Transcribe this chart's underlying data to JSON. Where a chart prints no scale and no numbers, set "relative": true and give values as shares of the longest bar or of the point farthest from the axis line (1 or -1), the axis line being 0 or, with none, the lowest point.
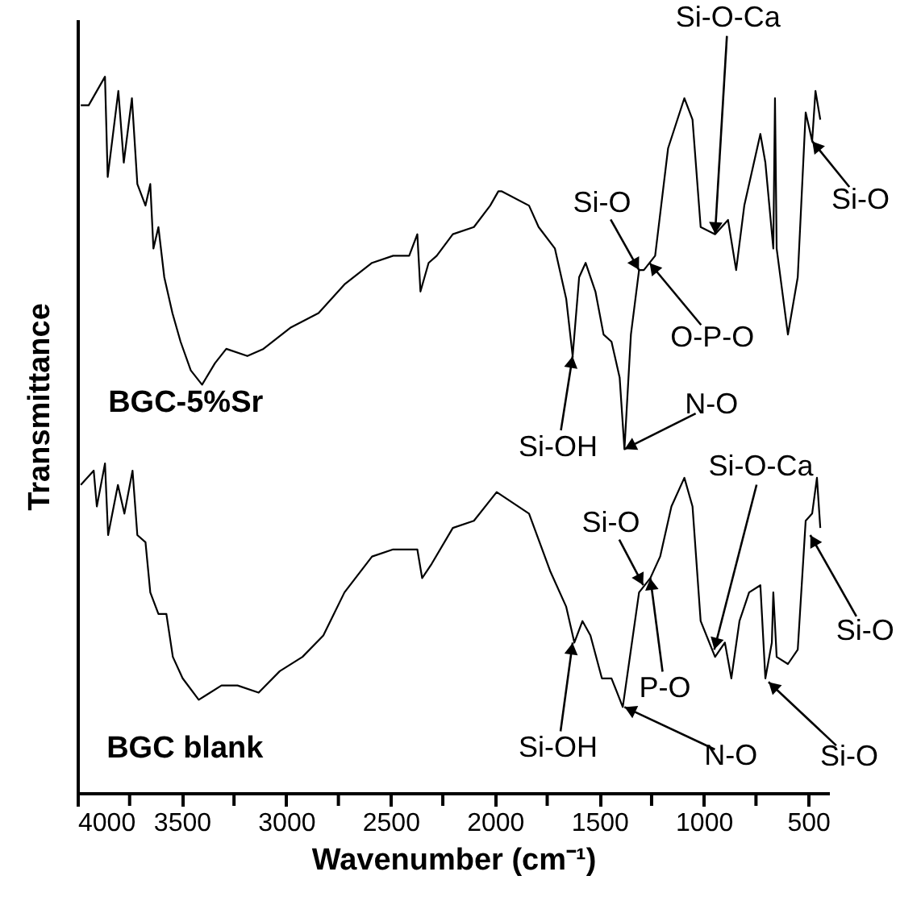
{
  "chart_data": {
    "type": "line",
    "relative": true,
    "xlabel": "Wavenumber (cm⁻¹)",
    "ylabel": "Transmittance",
    "xlim": [
      4000,
      400
    ],
    "xticks": [
      4000,
      {
        "value": 3750,
        "label": null
      },
      3500,
      {
        "value": 3250,
        "label": null
      },
      3000,
      {
        "value": 2750,
        "label": null
      },
      2500,
      {
        "value": 2250,
        "label": null
      },
      2000,
      {
        "value": 1750,
        "label": null
      },
      1500,
      {
        "value": 1250,
        "label": null
      },
      1000,
      {
        "value": 750,
        "label": null
      },
      500
    ],
    "series": [
      {
        "name": "BGC-5%Sr",
        "color": "#000000",
        "x": [
          3984,
          3946,
          3868,
          3855,
          3804,
          3778,
          3739,
          3713,
          3674,
          3651,
          3636,
          3612,
          3584,
          3545,
          3506,
          3457,
          3403,
          3341,
          3287,
          3186,
          3109,
          2977,
          2845,
          2721,
          2589,
          2488,
          2411,
          2372,
          2357,
          2318,
          2279,
          2202,
          2101,
          2023,
          1984,
          1969,
          1837,
          1791,
          1713,
          1659,
          1628,
          1597,
          1566,
          1519,
          1480,
          1442,
          1403,
          1380,
          1349,
          1310,
          1287,
          1233,
          1171,
          1093,
          1054,
          1015,
          946,
          884,
          845,
          806,
          729,
          705,
          667,
          659,
          651,
          597,
          550,
          512,
          481,
          465,
          442
        ],
        "values": [
          0.96,
          0.96,
          1.0,
          0.86,
          0.98,
          0.88,
          0.97,
          0.85,
          0.82,
          0.85,
          0.76,
          0.79,
          0.72,
          0.67,
          0.63,
          0.59,
          0.57,
          0.6,
          0.62,
          0.61,
          0.62,
          0.65,
          0.67,
          0.71,
          0.74,
          0.75,
          0.75,
          0.78,
          0.7,
          0.74,
          0.75,
          0.78,
          0.79,
          0.82,
          0.84,
          0.84,
          0.82,
          0.79,
          0.76,
          0.69,
          0.61,
          0.72,
          0.74,
          0.7,
          0.64,
          0.63,
          0.58,
          0.48,
          0.64,
          0.73,
          0.73,
          0.75,
          0.9,
          0.97,
          0.94,
          0.79,
          0.78,
          0.8,
          0.73,
          0.82,
          0.92,
          0.88,
          0.76,
          0.97,
          0.76,
          0.64,
          0.72,
          0.95,
          0.91,
          0.98,
          0.94
        ]
      },
      {
        "name": "BGC blank",
        "color": "#000000",
        "x": [
          3984,
          3922,
          3907,
          3868,
          3853,
          3806,
          3775,
          3736,
          3713,
          3674,
          3651,
          3612,
          3574,
          3543,
          3496,
          3419,
          3310,
          3233,
          3132,
          3031,
          2922,
          2822,
          2721,
          2589,
          2488,
          2411,
          2372,
          2349,
          2303,
          2202,
          2101,
          1992,
          1837,
          1736,
          1659,
          1620,
          1581,
          1543,
          1488,
          1442,
          1388,
          1349,
          1310,
          1256,
          1209,
          1155,
          1093,
          1054,
          1015,
          946,
          899,
          868,
          829,
          783,
          729,
          705,
          674,
          667,
          651,
          597,
          550,
          512,
          481,
          458,
          442
        ],
        "values": [
          0.43,
          0.45,
          0.4,
          0.46,
          0.36,
          0.43,
          0.39,
          0.45,
          0.36,
          0.35,
          0.28,
          0.25,
          0.25,
          0.19,
          0.16,
          0.13,
          0.15,
          0.15,
          0.14,
          0.17,
          0.19,
          0.22,
          0.28,
          0.33,
          0.34,
          0.34,
          0.34,
          0.3,
          0.32,
          0.37,
          0.38,
          0.42,
          0.39,
          0.31,
          0.26,
          0.21,
          0.24,
          0.22,
          0.16,
          0.16,
          0.12,
          0.2,
          0.28,
          0.3,
          0.33,
          0.4,
          0.44,
          0.4,
          0.24,
          0.19,
          0.21,
          0.16,
          0.24,
          0.28,
          0.29,
          0.16,
          0.21,
          0.28,
          0.19,
          0.18,
          0.2,
          0.38,
          0.39,
          0.44,
          0.37
        ]
      }
    ],
    "annotations": [
      {
        "text": "Si-O-Ca",
        "x": 946,
        "y": 0.78
      },
      {
        "text": "Si-O",
        "x": 481,
        "y": 0.91
      },
      {
        "text": "Si-O",
        "x": 1310,
        "y": 0.73
      },
      {
        "text": "O-P-O",
        "x": 1260,
        "y": 0.74
      },
      {
        "text": "Si-OH",
        "x": 1628,
        "y": 0.61
      },
      {
        "text": "N-O",
        "x": 1380,
        "y": 0.48
      },
      {
        "text": "Si-O",
        "x": 1290,
        "y": 0.29
      },
      {
        "text": "Si-O-Ca",
        "x": 950,
        "y": 0.2
      },
      {
        "text": "P-O",
        "x": 1256,
        "y": 0.3
      },
      {
        "text": "Si-OH",
        "x": 1628,
        "y": 0.21
      },
      {
        "text": "N-O",
        "x": 1380,
        "y": 0.12
      },
      {
        "text": "Si-O",
        "x": 690,
        "y": 0.155
      },
      {
        "text": "Si-O",
        "x": 490,
        "y": 0.36
      }
    ]
  }
}
